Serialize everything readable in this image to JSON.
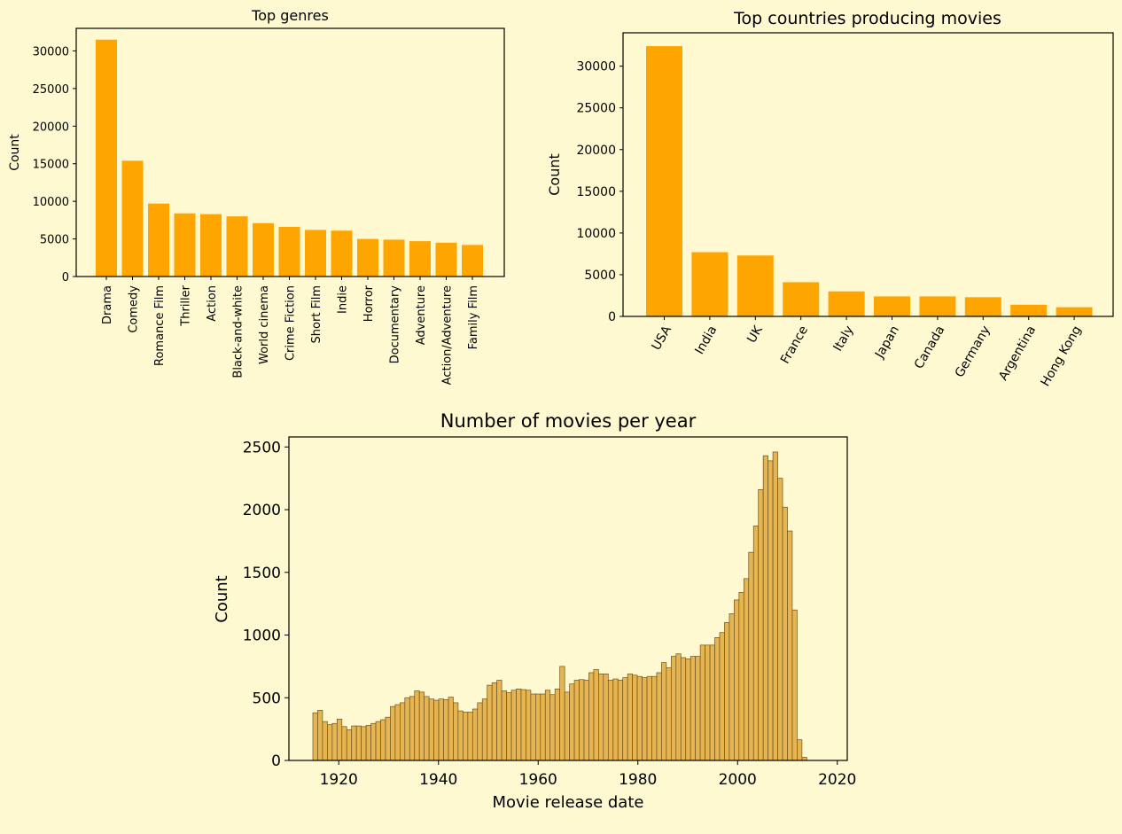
{
  "colors": {
    "background": "#fef9d0",
    "bar": "#ffa500",
    "hist": "#e6b551",
    "hist_edge": "#6b5320"
  },
  "chart_data": [
    {
      "type": "bar",
      "title": "Top genres",
      "xlabel": "",
      "ylabel": "Count",
      "ylim": [
        0,
        33000
      ],
      "yticks": [
        0,
        5000,
        10000,
        15000,
        20000,
        25000,
        30000
      ],
      "categories": [
        "Drama",
        "Comedy",
        "Romance Film",
        "Thriller",
        "Action",
        "Black-and-white",
        "World cinema",
        "Crime Fiction",
        "Short Film",
        "Indie",
        "Horror",
        "Documentary",
        "Adventure",
        "Action/Adventure",
        "Family Film"
      ],
      "values": [
        31500,
        15400,
        9700,
        8400,
        8300,
        8000,
        7100,
        6600,
        6200,
        6100,
        5000,
        4900,
        4700,
        4500,
        4200
      ],
      "grid": false
    },
    {
      "type": "bar",
      "title": "Top countries producing movies",
      "xlabel": "",
      "ylabel": "Count",
      "ylim": [
        0,
        34000
      ],
      "yticks": [
        0,
        5000,
        10000,
        15000,
        20000,
        25000,
        30000
      ],
      "categories": [
        "USA",
        "India",
        "UK",
        "France",
        "Italy",
        "Japan",
        "Canada",
        "Germany",
        "Argentina",
        "Hong Kong"
      ],
      "values": [
        32400,
        7700,
        7300,
        4100,
        3000,
        2400,
        2400,
        2300,
        1400,
        1100
      ],
      "grid": false
    },
    {
      "type": "bar",
      "title": "Number of movies per year",
      "xlabel": "Movie release date",
      "ylabel": "Count",
      "xlim": [
        1910,
        2022
      ],
      "ylim": [
        0,
        2580
      ],
      "xticks": [
        1920,
        1940,
        1960,
        1980,
        2000,
        2020
      ],
      "yticks": [
        0,
        500,
        1000,
        1500,
        2000,
        2500
      ],
      "bin_start": 1914.8,
      "bin_width": 0.9714,
      "values": [
        380,
        400,
        310,
        285,
        295,
        330,
        270,
        245,
        275,
        275,
        270,
        280,
        295,
        310,
        325,
        345,
        430,
        445,
        460,
        500,
        510,
        555,
        545,
        510,
        490,
        480,
        490,
        485,
        505,
        460,
        395,
        385,
        385,
        410,
        460,
        490,
        600,
        620,
        640,
        555,
        540,
        560,
        570,
        565,
        560,
        530,
        530,
        530,
        560,
        525,
        570,
        750,
        545,
        610,
        640,
        645,
        640,
        700,
        725,
        690,
        690,
        640,
        650,
        640,
        660,
        690,
        680,
        670,
        660,
        670,
        670,
        700,
        780,
        740,
        830,
        850,
        820,
        810,
        830,
        830,
        920,
        920,
        920,
        980,
        1020,
        1100,
        1170,
        1280,
        1340,
        1450,
        1660,
        1870,
        2160,
        2430,
        2390,
        2460,
        2250,
        2020,
        1830,
        1200,
        165,
        25
      ],
      "grid": false
    }
  ]
}
